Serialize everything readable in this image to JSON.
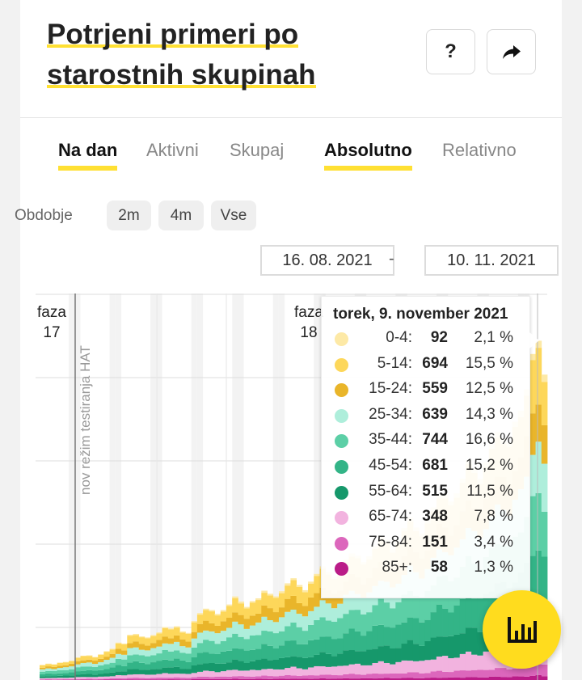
{
  "header": {
    "title_line1": "Potrjeni primeri po",
    "title_line2": "starostnih skupinah",
    "help_label": "?",
    "share_icon": "share-icon"
  },
  "tabs": {
    "view": [
      {
        "label": "Na dan",
        "active": true
      },
      {
        "label": "Aktivni",
        "active": false
      },
      {
        "label": "Skupaj",
        "active": false
      }
    ],
    "mode": [
      {
        "label": "Absolutno",
        "active": true
      },
      {
        "label": "Relativno",
        "active": false
      }
    ]
  },
  "period": {
    "label": "Obdobje",
    "options": [
      "2m",
      "4m",
      "Vse"
    ],
    "from": "16. 08. 2021",
    "separator": "-",
    "to": "10. 11. 2021"
  },
  "annotations": {
    "phase17_a": "faza",
    "phase17_b": "17",
    "phase18_a": "faza",
    "phase18_b": "18",
    "hat": "nov režim testiranja HAT"
  },
  "tooltip": {
    "title": "torek, 9. november 2021",
    "rows": [
      {
        "label": "0-4:",
        "count": "92",
        "pct": "2,1 %",
        "color": "#fde9a6"
      },
      {
        "label": "5-14:",
        "count": "694",
        "pct": "15,5 %",
        "color": "#fdd75a"
      },
      {
        "label": "15-24:",
        "count": "559",
        "pct": "12,5 %",
        "color": "#e9b52a"
      },
      {
        "label": "25-34:",
        "count": "639",
        "pct": "14,3 %",
        "color": "#aeeedb"
      },
      {
        "label": "35-44:",
        "count": "744",
        "pct": "16,6 %",
        "color": "#5ccfa6"
      },
      {
        "label": "45-54:",
        "count": "681",
        "pct": "15,2 %",
        "color": "#33b487"
      },
      {
        "label": "55-64:",
        "count": "515",
        "pct": "11,5 %",
        "color": "#16986b"
      },
      {
        "label": "65-74:",
        "count": "348",
        "pct": "7,8 %",
        "color": "#f2b3df"
      },
      {
        "label": "75-84:",
        "count": "151",
        "pct": "3,4 %",
        "color": "#dc67bc"
      },
      {
        "label": "85+:",
        "count": "58",
        "pct": "1,3 %",
        "color": "#ba1c88"
      }
    ]
  },
  "fab": {
    "icon": "bar-chart-icon"
  },
  "chart_data": {
    "type": "bar",
    "stacked": true,
    "series": [
      {
        "name": "0-4",
        "color": "#fde9a6"
      },
      {
        "name": "5-14",
        "color": "#fdd75a"
      },
      {
        "name": "15-24",
        "color": "#e9b52a"
      },
      {
        "name": "25-34",
        "color": "#aeeedb"
      },
      {
        "name": "35-44",
        "color": "#5ccfa6"
      },
      {
        "name": "45-54",
        "color": "#33b487"
      },
      {
        "name": "55-64",
        "color": "#16986b"
      },
      {
        "name": "65-74",
        "color": "#f2b3df"
      },
      {
        "name": "75-84",
        "color": "#dc67bc"
      },
      {
        "name": "85+",
        "color": "#ba1c88"
      }
    ],
    "daily_totals": [
      200,
      220,
      210,
      230,
      240,
      260,
      300,
      320,
      330,
      310,
      340,
      380,
      420,
      500,
      480,
      600,
      620,
      580,
      560,
      600,
      640,
      700,
      680,
      720,
      650,
      620,
      780,
      900,
      950,
      920,
      880,
      940,
      1000,
      1100,
      1050,
      980,
      1040,
      1080,
      1200,
      1150,
      1100,
      1180,
      1300,
      1350,
      1250,
      1200,
      1320,
      1400,
      1500,
      1450,
      1380,
      1450,
      1600,
      1700,
      1650,
      1550,
      1650,
      1800,
      1900,
      1850,
      1750,
      1850,
      2000,
      2150,
      2050,
      1950,
      2100,
      2300,
      2500,
      2450,
      2350,
      2500,
      2700,
      2900,
      2800,
      2700,
      2900,
      3100,
      3300,
      3250,
      3150,
      3400,
      3600,
      3900,
      4300,
      4481,
      4100
    ],
    "highlighted_day": "torek, 9. november 2021",
    "grid": true
  }
}
